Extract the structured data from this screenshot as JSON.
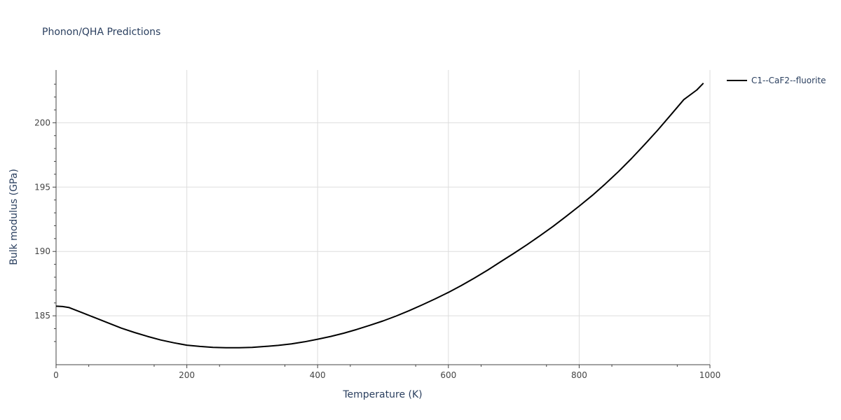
{
  "chart_data": {
    "type": "line",
    "title": "Phonon/QHA Predictions",
    "xlabel": "Temperature (K)",
    "ylabel": "Bulk modulus (GPa)",
    "xlim": [
      0,
      1000
    ],
    "ylim": [
      181.2,
      204.1
    ],
    "xticks": [
      0,
      200,
      400,
      600,
      800,
      1000
    ],
    "yticks": [
      185,
      190,
      195,
      200
    ],
    "grid": true,
    "legend": "top-right",
    "colors": {
      "series": "#000000",
      "grid": "#dddddd",
      "axis": "#444444"
    },
    "series": [
      {
        "name": "C1--CaF2--fluorite",
        "x": [
          0,
          10,
          20,
          30,
          40,
          60,
          80,
          100,
          120,
          140,
          160,
          180,
          200,
          220,
          240,
          260,
          280,
          300,
          320,
          340,
          360,
          380,
          400,
          420,
          440,
          460,
          480,
          500,
          520,
          540,
          560,
          580,
          600,
          620,
          640,
          660,
          680,
          700,
          720,
          740,
          760,
          780,
          800,
          820,
          840,
          860,
          880,
          900,
          920,
          940,
          960,
          980,
          990
        ],
        "y": [
          185.75,
          185.72,
          185.64,
          185.44,
          185.24,
          184.84,
          184.44,
          184.04,
          183.7,
          183.4,
          183.12,
          182.9,
          182.72,
          182.62,
          182.55,
          182.52,
          182.52,
          182.55,
          182.62,
          182.7,
          182.82,
          182.98,
          183.18,
          183.4,
          183.65,
          183.94,
          184.26,
          184.6,
          184.98,
          185.4,
          185.85,
          186.32,
          186.82,
          187.36,
          187.94,
          188.55,
          189.2,
          189.85,
          190.52,
          191.22,
          191.95,
          192.72,
          193.52,
          194.35,
          195.25,
          196.2,
          197.22,
          198.3,
          199.42,
          200.6,
          201.8,
          202.55,
          203.08
        ]
      }
    ]
  }
}
